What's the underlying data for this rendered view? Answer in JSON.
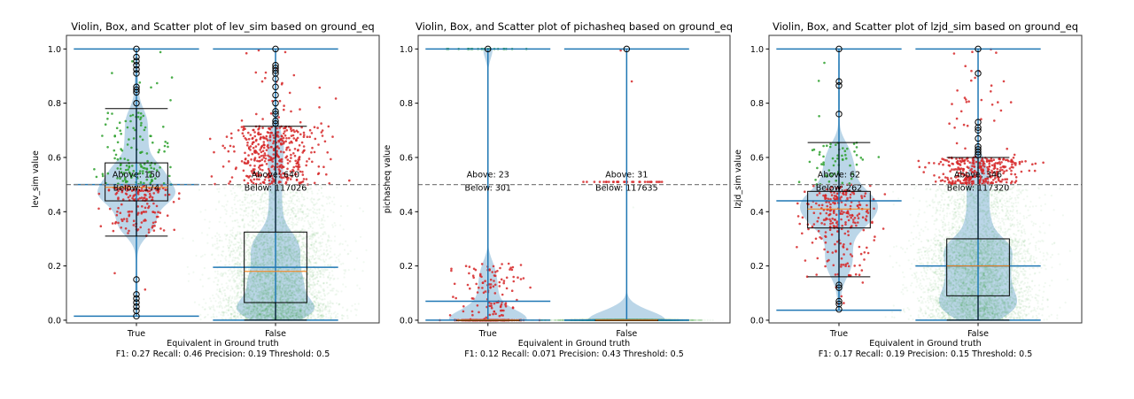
{
  "chart_data": [
    {
      "type": "violin-box-scatter",
      "title": "Violin, Box, and Scatter plot of lev_sim based on ground_eq",
      "xlabel": "Equivalent in Ground truth",
      "ylabel": "lev_sim value",
      "metrics": "F1: 0.27 Recall: 0.46 Precision: 0.19 Threshold: 0.5",
      "threshold": 0.5,
      "ylim": [
        -0.01,
        1.05
      ],
      "xlim": [
        0.497,
        2.745
      ],
      "yticks": [
        "0.0",
        "0.2",
        "0.4",
        "0.6",
        "0.8",
        "1.0"
      ],
      "groups": [
        {
          "label": "True",
          "above": "Above: 150",
          "below": "Below: 174",
          "n_above": 150,
          "n_below": 174,
          "box": {
            "whisker_low": 0.31,
            "q1": 0.44,
            "median": 0.49,
            "q3": 0.58,
            "whisker_high": 0.78
          },
          "violin": {
            "min": 0.015,
            "max": 1.0,
            "mean": 0.5
          },
          "quantiles": {
            "p": [
              0,
              0.02,
              0.25,
              0.5,
              0.75,
              0.97,
              1
            ],
            "v": [
              0.015,
              0.31,
              0.44,
              0.49,
              0.58,
              0.78,
              1.0
            ]
          },
          "outliers": [
            1.0,
            0.97,
            0.955,
            0.94,
            0.925,
            0.91,
            0.86,
            0.85,
            0.84,
            0.8,
            0.15,
            0.095,
            0.08,
            0.065,
            0.05,
            0.035,
            0.015
          ]
        },
        {
          "label": "False",
          "above": "Above: 640",
          "below": "Below: 117026",
          "n_above": 640,
          "n_below": 117026,
          "box": {
            "whisker_low": 0.0,
            "q1": 0.065,
            "median": 0.18,
            "q3": 0.325,
            "whisker_high": 0.715
          },
          "violin": {
            "min": 0.0,
            "max": 1.0,
            "mean": 0.195
          },
          "quantiles": {
            "p": [
              0,
              0.25,
              0.5,
              0.75,
              0.99,
              1
            ],
            "v": [
              0,
              0.065,
              0.18,
              0.325,
              0.715,
              1.0
            ]
          },
          "outliers": [
            1.0,
            0.94,
            0.93,
            0.92,
            0.91,
            0.89,
            0.86,
            0.83,
            0.8,
            0.77,
            0.76,
            0.735,
            0.725
          ]
        }
      ]
    },
    {
      "type": "violin-box-scatter",
      "title": "Violin, Box, and Scatter plot of pichasheq based on ground_eq",
      "xlabel": "Equivalent in Ground truth",
      "ylabel": "pichasheq value",
      "metrics": "F1: 0.12 Recall: 0.071 Precision: 0.43 Threshold: 0.5",
      "threshold": 0.5,
      "ylim": [
        -0.01,
        1.05
      ],
      "xlim": [
        0.497,
        2.745
      ],
      "yticks": [
        "0.0",
        "0.2",
        "0.4",
        "0.6",
        "0.8",
        "1.0"
      ],
      "groups": [
        {
          "label": "True",
          "above": "Above: 23",
          "below": "Below: 301",
          "n_above": 23,
          "n_below": 301,
          "box": {
            "whisker_low": 0.0,
            "q1": 0.0,
            "median": 0.0,
            "q3": 0.0,
            "whisker_high": 0.0
          },
          "violin": {
            "min": 0.0,
            "max": 1.0,
            "mean": 0.07
          },
          "quantiles": {
            "p": [
              0,
              0.55,
              0.9,
              0.929,
              0.93,
              1
            ],
            "v": [
              0,
              0,
              0.2,
              0.22,
              1,
              1
            ]
          },
          "outliers": [
            1.0
          ]
        },
        {
          "label": "False",
          "above": "Above: 31",
          "below": "Below: 117635",
          "n_above": 31,
          "n_below": 117635,
          "box": {
            "whisker_low": 0.0,
            "q1": 0.0,
            "median": 0.0,
            "q3": 0.0,
            "whisker_high": 0.0
          },
          "violin": {
            "min": 0.0,
            "max": 1.0,
            "mean": 0.0
          },
          "quantiles": {
            "p": [
              0,
              0.9997,
              1
            ],
            "v": [
              0,
              0,
              1
            ]
          },
          "outliers": [
            1.0
          ]
        }
      ]
    },
    {
      "type": "violin-box-scatter",
      "title": "Violin, Box, and Scatter plot of lzjd_sim based on ground_eq",
      "xlabel": "Equivalent in Ground truth",
      "ylabel": "lzjd_sim value",
      "metrics": "F1: 0.17 Recall: 0.19 Precision: 0.15 Threshold: 0.5",
      "threshold": 0.5,
      "ylim": [
        -0.01,
        1.05
      ],
      "xlim": [
        0.497,
        2.745
      ],
      "yticks": [
        "0.0",
        "0.2",
        "0.4",
        "0.6",
        "0.8",
        "1.0"
      ],
      "groups": [
        {
          "label": "True",
          "above": "Above: 62",
          "below": "Below: 262",
          "n_above": 62,
          "n_below": 262,
          "box": {
            "whisker_low": 0.16,
            "q1": 0.34,
            "median": 0.41,
            "q3": 0.475,
            "whisker_high": 0.655
          },
          "violin": {
            "min": 0.037,
            "max": 1.0,
            "mean": 0.44
          },
          "quantiles": {
            "p": [
              0,
              0.02,
              0.25,
              0.5,
              0.75,
              0.98,
              1
            ],
            "v": [
              0.037,
              0.16,
              0.34,
              0.41,
              0.475,
              0.655,
              1.0
            ]
          },
          "outliers": [
            1.0,
            0.88,
            0.865,
            0.76,
            0.13,
            0.12,
            0.07,
            0.06,
            0.04
          ]
        },
        {
          "label": "False",
          "above": "Above: 346",
          "below": "Below: 117320",
          "n_above": 346,
          "n_below": 117320,
          "box": {
            "whisker_low": 0.0,
            "q1": 0.09,
            "median": 0.2,
            "q3": 0.3,
            "whisker_high": 0.6
          },
          "violin": {
            "min": 0.0,
            "max": 1.0,
            "mean": 0.2
          },
          "quantiles": {
            "p": [
              0,
              0.25,
              0.5,
              0.75,
              0.99,
              1
            ],
            "v": [
              0,
              0.09,
              0.2,
              0.3,
              0.6,
              1.0
            ]
          },
          "outliers": [
            1.0,
            0.91,
            0.73,
            0.71,
            0.7,
            0.67,
            0.64,
            0.63,
            0.62,
            0.61
          ]
        }
      ]
    }
  ],
  "colors": {
    "violin": "#1f77b4",
    "correct": "#2ca02c",
    "incorrect": "#d62728",
    "median": "#ff7f0e",
    "threshold": "#808080"
  }
}
